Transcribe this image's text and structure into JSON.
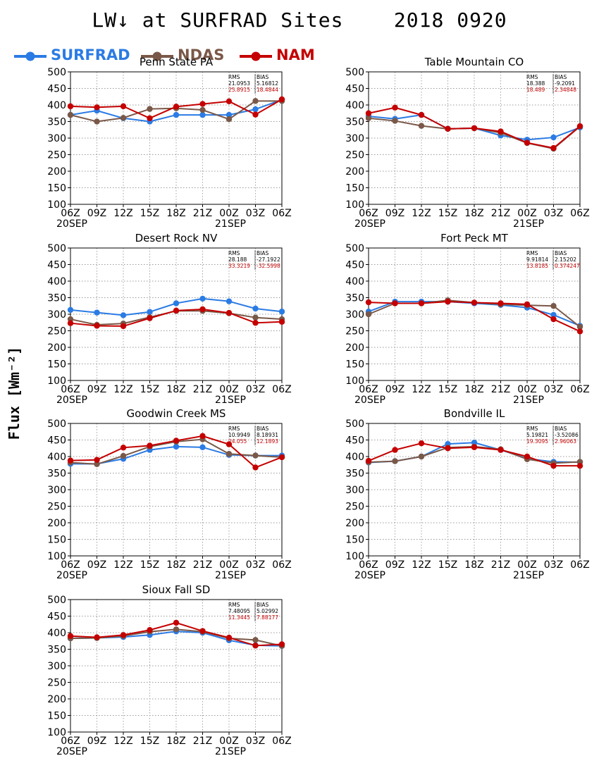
{
  "figure": {
    "title": "LW↓ at SURFRAD Sites    2018 0920",
    "ylabel": "Flux [Wm⁻²]",
    "legend": [
      {
        "name": "SURFRAD",
        "color": "#2b7be4"
      },
      {
        "name": "NDAS",
        "color": "#7a5848"
      },
      {
        "name": "NAM",
        "color": "#c40000"
      }
    ]
  },
  "chart_data": [
    {
      "type": "line",
      "title": "Penn State PA",
      "x": [
        "06Z",
        "09Z",
        "12Z",
        "15Z",
        "18Z",
        "21Z",
        "00Z",
        "03Z",
        "06Z"
      ],
      "date_labels": [
        "20SEP",
        "",
        "",
        "",
        "",
        "",
        "21SEP",
        "",
        ""
      ],
      "ylim": [
        100,
        500
      ],
      "yticks": [
        100,
        150,
        200,
        250,
        300,
        350,
        400,
        450,
        500
      ],
      "grid": true,
      "stats": {
        "headers": [
          "RMS",
          "BIAS"
        ],
        "rows": [
          [
            "21.0953",
            "5.16812"
          ],
          [
            "25.8915",
            "18.4844"
          ]
        ]
      },
      "series": [
        {
          "name": "SURFRAD",
          "values": [
            370,
            383,
            360,
            350,
            370,
            370,
            370,
            387,
            416
          ]
        },
        {
          "name": "NDAS",
          "values": [
            370,
            350,
            361,
            388,
            390,
            385,
            357,
            412,
            412
          ]
        },
        {
          "name": "NAM",
          "values": [
            396,
            393,
            396,
            360,
            395,
            403,
            411,
            371,
            417
          ]
        }
      ]
    },
    {
      "type": "line",
      "title": "Table Mountain CO",
      "x": [
        "06Z",
        "09Z",
        "12Z",
        "15Z",
        "18Z",
        "21Z",
        "00Z",
        "03Z",
        "06Z"
      ],
      "date_labels": [
        "20SEP",
        "",
        "",
        "",
        "",
        "",
        "21SEP",
        "",
        ""
      ],
      "ylim": [
        100,
        500
      ],
      "yticks": [
        100,
        150,
        200,
        250,
        300,
        350,
        400,
        450,
        500
      ],
      "grid": true,
      "stats": {
        "headers": [
          "RMS",
          "BIAS"
        ],
        "rows": [
          [
            "18.388",
            "-9.2091"
          ],
          [
            "18.489",
            "2.34848"
          ]
        ]
      },
      "series": [
        {
          "name": "SURFRAD",
          "values": [
            366,
            358,
            370,
            328,
            330,
            308,
            295,
            302,
            332
          ]
        },
        {
          "name": "NDAS",
          "values": [
            360,
            352,
            337,
            328,
            330,
            316,
            285,
            268,
            335
          ]
        },
        {
          "name": "NAM",
          "values": [
            375,
            392,
            370,
            328,
            330,
            320,
            286,
            270,
            336
          ]
        }
      ]
    },
    {
      "type": "line",
      "title": "Desert Rock NV",
      "x": [
        "06Z",
        "09Z",
        "12Z",
        "15Z",
        "18Z",
        "21Z",
        "00Z",
        "03Z",
        "06Z"
      ],
      "date_labels": [
        "20SEP",
        "",
        "",
        "",
        "",
        "",
        "21SEP",
        "",
        ""
      ],
      "ylim": [
        100,
        500
      ],
      "yticks": [
        100,
        150,
        200,
        250,
        300,
        350,
        400,
        450,
        500
      ],
      "grid": true,
      "stats": {
        "headers": [
          "RMS",
          "BIAS"
        ],
        "rows": [
          [
            "28.188",
            "-27.1922"
          ],
          [
            "33.3219",
            "-32.5998"
          ]
        ]
      },
      "series": [
        {
          "name": "SURFRAD",
          "values": [
            313,
            305,
            297,
            307,
            333,
            347,
            339,
            317,
            308
          ]
        },
        {
          "name": "NDAS",
          "values": [
            285,
            268,
            272,
            291,
            310,
            310,
            303,
            290,
            285
          ]
        },
        {
          "name": "NAM",
          "values": [
            273,
            265,
            264,
            288,
            311,
            315,
            304,
            274,
            277
          ]
        }
      ]
    },
    {
      "type": "line",
      "title": "Fort Peck MT",
      "x": [
        "06Z",
        "09Z",
        "12Z",
        "15Z",
        "18Z",
        "21Z",
        "00Z",
        "03Z",
        "06Z"
      ],
      "date_labels": [
        "20SEP",
        "",
        "",
        "",
        "",
        "",
        "21SEP",
        "",
        ""
      ],
      "ylim": [
        100,
        500
      ],
      "yticks": [
        100,
        150,
        200,
        250,
        300,
        350,
        400,
        450,
        500
      ],
      "grid": true,
      "stats": {
        "headers": [
          "RMS",
          "BIAS"
        ],
        "rows": [
          [
            "9.91814",
            "2.15202"
          ],
          [
            "13.8185",
            "0.374247"
          ]
        ]
      },
      "series": [
        {
          "name": "SURFRAD",
          "values": [
            308,
            338,
            338,
            338,
            333,
            328,
            320,
            298,
            265
          ]
        },
        {
          "name": "NDAS",
          "values": [
            300,
            333,
            333,
            342,
            335,
            330,
            327,
            325,
            262
          ]
        },
        {
          "name": "NAM",
          "values": [
            336,
            333,
            333,
            338,
            335,
            333,
            330,
            285,
            248
          ]
        }
      ]
    },
    {
      "type": "line",
      "title": "Goodwin Creek MS",
      "x": [
        "06Z",
        "09Z",
        "12Z",
        "15Z",
        "18Z",
        "21Z",
        "00Z",
        "03Z",
        "06Z"
      ],
      "date_labels": [
        "20SEP",
        "",
        "",
        "",
        "",
        "",
        "21SEP",
        "",
        ""
      ],
      "ylim": [
        100,
        500
      ],
      "yticks": [
        100,
        150,
        200,
        250,
        300,
        350,
        400,
        450,
        500
      ],
      "grid": true,
      "stats": {
        "headers": [
          "RMS",
          "BIAS"
        ],
        "rows": [
          [
            "10.9949",
            "8.18931"
          ],
          [
            "24.055",
            "12.1893"
          ]
        ]
      },
      "series": [
        {
          "name": "SURFRAD",
          "values": [
            378,
            378,
            393,
            420,
            430,
            428,
            405,
            403,
            403
          ]
        },
        {
          "name": "NDAS",
          "values": [
            382,
            377,
            402,
            430,
            445,
            452,
            408,
            403,
            398
          ]
        },
        {
          "name": "NAM",
          "values": [
            388,
            390,
            427,
            433,
            448,
            462,
            437,
            367,
            398
          ]
        }
      ]
    },
    {
      "type": "line",
      "title": "Bondville IL",
      "x": [
        "06Z",
        "09Z",
        "12Z",
        "15Z",
        "18Z",
        "21Z",
        "00Z",
        "03Z",
        "06Z"
      ],
      "date_labels": [
        "20SEP",
        "",
        "",
        "",
        "",
        "",
        "21SEP",
        "",
        ""
      ],
      "ylim": [
        100,
        500
      ],
      "yticks": [
        100,
        150,
        200,
        250,
        300,
        350,
        400,
        450,
        500
      ],
      "grid": true,
      "stats": {
        "headers": [
          "RMS",
          "BIAS"
        ],
        "rows": [
          [
            "5.19821",
            "-3.52086"
          ],
          [
            "19.3095",
            "2.96063"
          ]
        ]
      },
      "series": [
        {
          "name": "SURFRAD",
          "values": [
            382,
            386,
            400,
            438,
            442,
            420,
            394,
            384,
            383
          ]
        },
        {
          "name": "NDAS",
          "values": [
            383,
            386,
            400,
            427,
            430,
            422,
            392,
            380,
            384
          ]
        },
        {
          "name": "NAM",
          "values": [
            387,
            420,
            440,
            425,
            428,
            420,
            400,
            372,
            372
          ]
        }
      ]
    },
    {
      "type": "line",
      "title": "Sioux Fall SD",
      "x": [
        "06Z",
        "09Z",
        "12Z",
        "15Z",
        "18Z",
        "21Z",
        "00Z",
        "03Z",
        "06Z"
      ],
      "date_labels": [
        "20SEP",
        "",
        "",
        "",
        "",
        "",
        "21SEP",
        "",
        ""
      ],
      "ylim": [
        100,
        500
      ],
      "yticks": [
        100,
        150,
        200,
        250,
        300,
        350,
        400,
        450,
        500
      ],
      "grid": true,
      "stats": {
        "headers": [
          "RMS",
          "BIAS"
        ],
        "rows": [
          [
            "7.48095",
            "5.02992"
          ],
          [
            "11.3445",
            "7.88177"
          ]
        ]
      },
      "series": [
        {
          "name": "SURFRAD",
          "values": [
            383,
            384,
            387,
            393,
            404,
            400,
            377,
            362,
            360
          ]
        },
        {
          "name": "NDAS",
          "values": [
            383,
            384,
            390,
            403,
            410,
            403,
            383,
            378,
            360
          ]
        },
        {
          "name": "NAM",
          "values": [
            390,
            386,
            393,
            408,
            430,
            405,
            385,
            361,
            365
          ]
        }
      ]
    }
  ]
}
